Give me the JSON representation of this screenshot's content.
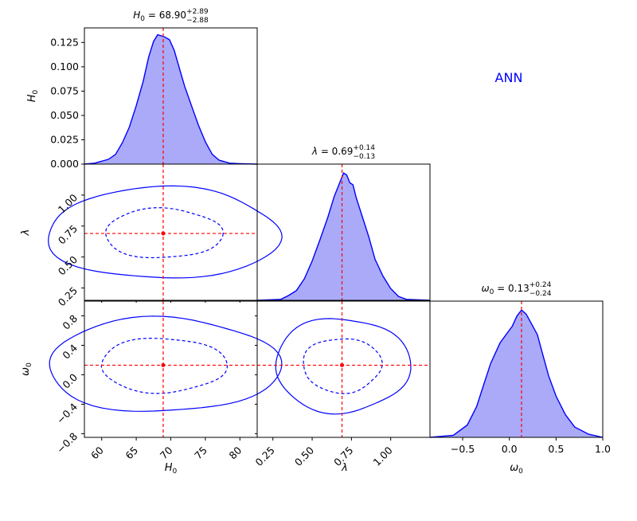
{
  "annotation": {
    "text": "ANN",
    "color": "#0000ff"
  },
  "colors": {
    "fill": "#aaaaf8",
    "line": "#0000ff",
    "marker": "#ff0000"
  },
  "chart_data": {
    "type": "corner",
    "params": [
      {
        "name": "H0",
        "symbol": "H",
        "sub": "0",
        "mean": 68.9,
        "plus": "2.89",
        "minus": "2.88",
        "mean_text": "68.90",
        "range": [
          57.5,
          82.5
        ],
        "ticks": [
          60,
          65,
          70,
          75,
          80
        ],
        "tick_labels": [
          "60",
          "65",
          "70",
          "75",
          "80"
        ],
        "diag_ylim": [
          0,
          0.14
        ],
        "diag_ticks": [
          0,
          0.025,
          0.05,
          0.075,
          0.1,
          0.125
        ],
        "diag_tick_labels": [
          "0.000",
          "0.025",
          "0.050",
          "0.075",
          "0.100",
          "0.125"
        ]
      },
      {
        "name": "lambda",
        "symbol": "λ",
        "sub": "",
        "mean": 0.69,
        "plus": "0.14",
        "minus": "0.13",
        "mean_text": "0.69",
        "range": [
          0.15,
          1.25
        ],
        "ticks": [
          0.25,
          0.5,
          0.75,
          1.0
        ],
        "tick_labels": [
          "0.25",
          "0.50",
          "0.75",
          "1.00"
        ]
      },
      {
        "name": "omega0",
        "symbol": "ω",
        "sub": "0",
        "mean": 0.13,
        "plus": "0.24",
        "minus": "0.24",
        "mean_text": "0.13",
        "range": [
          -0.85,
          1.0
        ],
        "ticks": [
          -0.5,
          0.0,
          0.5,
          1.0
        ],
        "tick_labels": [
          "−0.5",
          "0.0",
          "0.5",
          "1.0"
        ],
        "off_ticks": [
          -0.8,
          -0.4,
          0.0,
          0.4,
          0.8
        ],
        "off_tick_labels": [
          "−0.8",
          "−0.4",
          "0.0",
          "0.4",
          "0.8"
        ]
      }
    ],
    "diagonals": [
      {
        "param": 0,
        "points": [
          [
            57.5,
            0
          ],
          [
            59,
            0.001
          ],
          [
            61,
            0.005
          ],
          [
            62,
            0.01
          ],
          [
            63,
            0.022
          ],
          [
            64,
            0.038
          ],
          [
            65,
            0.06
          ],
          [
            66,
            0.085
          ],
          [
            66.8,
            0.11
          ],
          [
            67.5,
            0.126
          ],
          [
            68.1,
            0.133
          ],
          [
            69,
            0.131
          ],
          [
            69.8,
            0.128
          ],
          [
            70.5,
            0.117
          ],
          [
            71.3,
            0.097
          ],
          [
            72,
            0.08
          ],
          [
            73,
            0.06
          ],
          [
            74,
            0.04
          ],
          [
            75,
            0.023
          ],
          [
            76,
            0.01
          ],
          [
            77,
            0.004
          ],
          [
            78.5,
            0.001
          ],
          [
            80,
            0.0005
          ],
          [
            82.5,
            0
          ]
        ]
      },
      {
        "param": 1,
        "points": [
          [
            0.15,
            0
          ],
          [
            0.3,
            0.001
          ],
          [
            0.35,
            0.005
          ],
          [
            0.4,
            0.01
          ],
          [
            0.45,
            0.022
          ],
          [
            0.5,
            0.04
          ],
          [
            0.55,
            0.062
          ],
          [
            0.6,
            0.085
          ],
          [
            0.64,
            0.106
          ],
          [
            0.68,
            0.122
          ],
          [
            0.7,
            0.13
          ],
          [
            0.72,
            0.128
          ],
          [
            0.74,
            0.12
          ],
          [
            0.76,
            0.118
          ],
          [
            0.78,
            0.105
          ],
          [
            0.82,
            0.085
          ],
          [
            0.86,
            0.065
          ],
          [
            0.9,
            0.042
          ],
          [
            0.95,
            0.025
          ],
          [
            1.0,
            0.012
          ],
          [
            1.05,
            0.004
          ],
          [
            1.1,
            0.001
          ],
          [
            1.25,
            0
          ]
        ]
      },
      {
        "param": 2,
        "points": [
          [
            -0.85,
            0
          ],
          [
            -0.6,
            0.002
          ],
          [
            -0.45,
            0.012
          ],
          [
            -0.35,
            0.03
          ],
          [
            -0.28,
            0.05
          ],
          [
            -0.2,
            0.072
          ],
          [
            -0.1,
            0.092
          ],
          [
            -0.02,
            0.102
          ],
          [
            0.03,
            0.108
          ],
          [
            0.08,
            0.118
          ],
          [
            0.13,
            0.124
          ],
          [
            0.18,
            0.12
          ],
          [
            0.24,
            0.11
          ],
          [
            0.3,
            0.1
          ],
          [
            0.36,
            0.08
          ],
          [
            0.42,
            0.06
          ],
          [
            0.5,
            0.04
          ],
          [
            0.6,
            0.022
          ],
          [
            0.7,
            0.01
          ],
          [
            0.85,
            0.003
          ],
          [
            1.0,
            0
          ]
        ]
      }
    ],
    "contours": [
      {
        "x": 0,
        "y": 1,
        "inner": [
          8.5,
          0.2
        ],
        "outer": [
          16.8,
          0.37
        ]
      },
      {
        "x": 0,
        "y": 2,
        "inner": [
          9.1,
          0.37
        ],
        "outer": [
          16.8,
          0.64
        ]
      },
      {
        "x": 1,
        "y": 2,
        "inner": [
          0.25,
          0.37
        ],
        "outer": [
          0.43,
          0.64
        ]
      }
    ]
  }
}
